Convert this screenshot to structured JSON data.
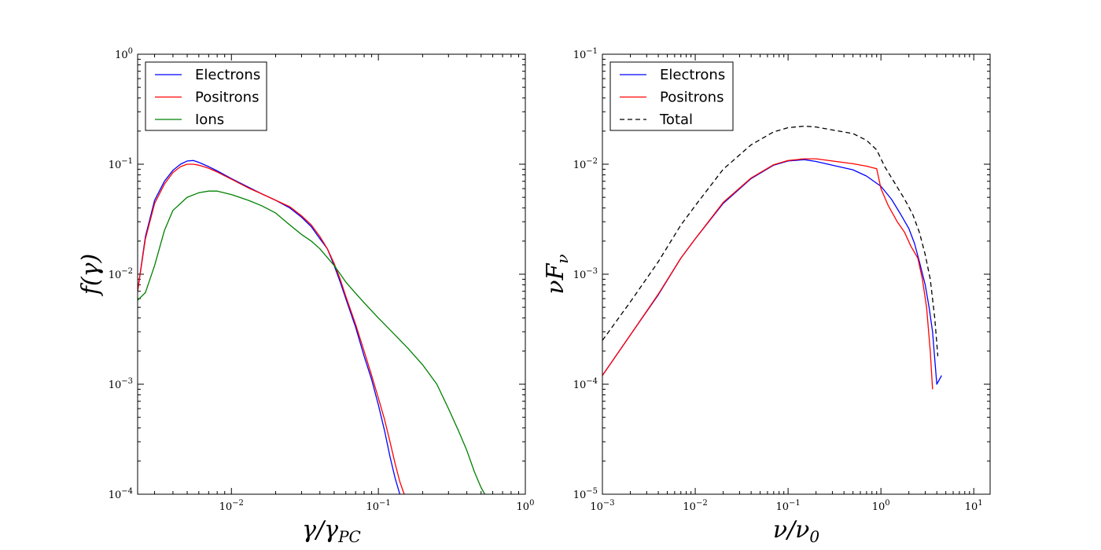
{
  "chart_data": [
    {
      "type": "line",
      "xscale": "log",
      "yscale": "log",
      "xlabel": "γ/γ",
      "xlabel_sub": "PC",
      "ylabel": "f(γ)",
      "xlim": [
        0.0023,
        1.0
      ],
      "ylim": [
        0.0001,
        1.0
      ],
      "xticks": [
        {
          "value": 0.01,
          "base": "10",
          "exp": "−2"
        },
        {
          "value": 0.1,
          "base": "10",
          "exp": "−1"
        },
        {
          "value": 1.0,
          "base": "10",
          "exp": "0"
        }
      ],
      "yticks": [
        {
          "value": 0.0001,
          "base": "10",
          "exp": "−4"
        },
        {
          "value": 0.001,
          "base": "10",
          "exp": "−3"
        },
        {
          "value": 0.01,
          "base": "10",
          "exp": "−2"
        },
        {
          "value": 0.1,
          "base": "10",
          "exp": "−1"
        },
        {
          "value": 1.0,
          "base": "10",
          "exp": "0"
        }
      ],
      "legend_position": "top-left",
      "series": [
        {
          "name": "Electrons",
          "color": "#0000ff",
          "style": "solid",
          "x": [
            0.0023,
            0.0026,
            0.003,
            0.0035,
            0.004,
            0.0045,
            0.005,
            0.0055,
            0.006,
            0.007,
            0.008,
            0.01,
            0.013,
            0.016,
            0.02,
            0.025,
            0.03,
            0.035,
            0.04,
            0.045,
            0.05,
            0.055,
            0.06,
            0.07,
            0.08,
            0.09,
            0.1,
            0.11,
            0.12,
            0.13,
            0.14
          ],
          "y": [
            0.007,
            0.022,
            0.047,
            0.07,
            0.088,
            0.1,
            0.107,
            0.108,
            0.104,
            0.095,
            0.087,
            0.074,
            0.062,
            0.054,
            0.047,
            0.04,
            0.033,
            0.027,
            0.021,
            0.017,
            0.012,
            0.0085,
            0.006,
            0.0033,
            0.0018,
            0.0011,
            0.00065,
            0.00038,
            0.00022,
            0.00014,
            0.0001
          ]
        },
        {
          "name": "Positrons",
          "color": "#ff0000",
          "style": "solid",
          "x": [
            0.0023,
            0.0026,
            0.003,
            0.0035,
            0.004,
            0.0045,
            0.005,
            0.0055,
            0.006,
            0.007,
            0.008,
            0.01,
            0.013,
            0.016,
            0.02,
            0.025,
            0.03,
            0.035,
            0.04,
            0.045,
            0.05,
            0.055,
            0.06,
            0.07,
            0.08,
            0.09,
            0.1,
            0.11,
            0.12,
            0.13,
            0.14,
            0.15
          ],
          "y": [
            0.007,
            0.021,
            0.044,
            0.066,
            0.084,
            0.095,
            0.1,
            0.1,
            0.098,
            0.092,
            0.085,
            0.073,
            0.061,
            0.054,
            0.047,
            0.041,
            0.034,
            0.028,
            0.022,
            0.017,
            0.0125,
            0.009,
            0.0063,
            0.0035,
            0.002,
            0.0012,
            0.00075,
            0.00048,
            0.0003,
            0.00019,
            0.00013,
            0.0001
          ]
        },
        {
          "name": "Ions",
          "color": "#008000",
          "style": "solid",
          "x": [
            0.0023,
            0.0026,
            0.003,
            0.0035,
            0.004,
            0.005,
            0.006,
            0.007,
            0.008,
            0.01,
            0.013,
            0.016,
            0.02,
            0.025,
            0.03,
            0.035,
            0.04,
            0.05,
            0.06,
            0.07,
            0.08,
            0.1,
            0.13,
            0.16,
            0.2,
            0.25,
            0.3,
            0.35,
            0.4,
            0.45,
            0.5,
            0.53
          ],
          "y": [
            0.0058,
            0.0068,
            0.012,
            0.025,
            0.038,
            0.05,
            0.055,
            0.057,
            0.057,
            0.053,
            0.047,
            0.042,
            0.036,
            0.028,
            0.023,
            0.02,
            0.017,
            0.012,
            0.0085,
            0.0067,
            0.0055,
            0.004,
            0.0028,
            0.0021,
            0.0015,
            0.001,
            0.0006,
            0.00038,
            0.00025,
            0.00016,
            0.000115,
            0.0001
          ]
        }
      ]
    },
    {
      "type": "line",
      "xscale": "log",
      "yscale": "log",
      "xlabel": "ν/ν",
      "xlabel_sub": "0",
      "ylabel": "νF",
      "ylabel_sub": "ν",
      "xlim": [
        0.001,
        15.0
      ],
      "ylim": [
        1e-05,
        0.1
      ],
      "xticks": [
        {
          "value": 0.001,
          "base": "10",
          "exp": "−3"
        },
        {
          "value": 0.01,
          "base": "10",
          "exp": "−2"
        },
        {
          "value": 0.1,
          "base": "10",
          "exp": "−1"
        },
        {
          "value": 1.0,
          "base": "10",
          "exp": "0"
        },
        {
          "value": 10.0,
          "base": "10",
          "exp": "1"
        }
      ],
      "yticks": [
        {
          "value": 1e-05,
          "base": "10",
          "exp": "−5"
        },
        {
          "value": 0.0001,
          "base": "10",
          "exp": "−4"
        },
        {
          "value": 0.001,
          "base": "10",
          "exp": "−3"
        },
        {
          "value": 0.01,
          "base": "10",
          "exp": "−2"
        },
        {
          "value": 0.1,
          "base": "10",
          "exp": "−1"
        }
      ],
      "legend_position": "top-left",
      "series": [
        {
          "name": "Electrons",
          "color": "#0000ff",
          "style": "solid",
          "x": [
            0.001,
            0.002,
            0.004,
            0.007,
            0.01,
            0.02,
            0.04,
            0.07,
            0.1,
            0.15,
            0.2,
            0.3,
            0.5,
            0.7,
            1.0,
            1.3,
            1.6,
            2.0,
            2.3,
            2.6,
            3.0,
            3.3,
            3.6,
            4.0,
            4.5
          ],
          "y": [
            0.00012,
            0.00028,
            0.00065,
            0.0014,
            0.0021,
            0.0044,
            0.0074,
            0.0098,
            0.0107,
            0.011,
            0.0106,
            0.0098,
            0.0089,
            0.0078,
            0.0063,
            0.0048,
            0.0036,
            0.0026,
            0.0019,
            0.0013,
            0.0008,
            0.0005,
            0.0003,
            0.0001,
            0.00012
          ]
        },
        {
          "name": "Positrons",
          "color": "#ff0000",
          "style": "solid",
          "x": [
            0.001,
            0.002,
            0.004,
            0.007,
            0.01,
            0.02,
            0.04,
            0.07,
            0.1,
            0.15,
            0.2,
            0.3,
            0.5,
            0.7,
            0.9,
            1.0,
            1.2,
            1.5,
            1.8,
            2.1,
            2.5,
            2.8,
            3.1,
            3.4,
            3.6
          ],
          "y": [
            0.00012,
            0.00028,
            0.00066,
            0.0014,
            0.0021,
            0.0045,
            0.0075,
            0.0099,
            0.0108,
            0.0112,
            0.0112,
            0.0107,
            0.0101,
            0.0096,
            0.0091,
            0.006,
            0.0042,
            0.003,
            0.0024,
            0.0018,
            0.0014,
            0.0009,
            0.0005,
            0.0002,
            9e-05
          ]
        },
        {
          "name": "Total",
          "color": "#000000",
          "style": "dashed",
          "x": [
            0.001,
            0.002,
            0.004,
            0.007,
            0.01,
            0.02,
            0.04,
            0.07,
            0.1,
            0.15,
            0.2,
            0.3,
            0.5,
            0.7,
            0.9,
            1.1,
            1.4,
            1.8,
            2.2,
            2.6,
            3.0,
            3.4,
            3.8,
            4.1
          ],
          "y": [
            0.00025,
            0.00056,
            0.0013,
            0.0028,
            0.0042,
            0.009,
            0.015,
            0.0197,
            0.0215,
            0.0222,
            0.0218,
            0.0205,
            0.019,
            0.0165,
            0.0135,
            0.0095,
            0.0068,
            0.0048,
            0.0035,
            0.0024,
            0.0015,
            0.0009,
            0.0004,
            0.00018
          ]
        }
      ]
    }
  ]
}
